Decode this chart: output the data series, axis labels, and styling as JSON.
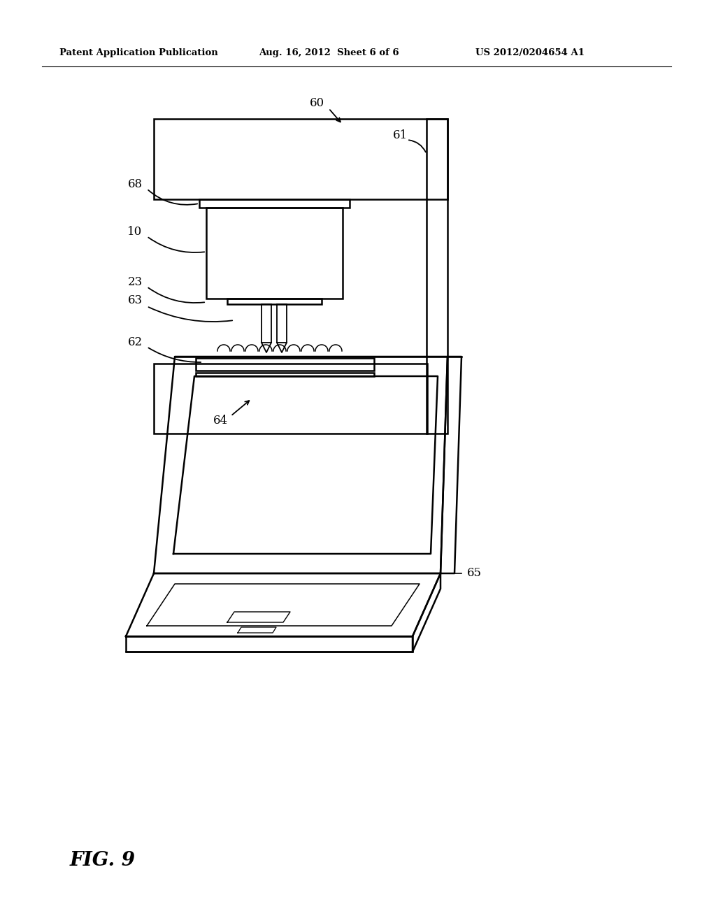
{
  "bg_color": "#ffffff",
  "line_color": "#000000",
  "header_left": "Patent Application Publication",
  "header_mid": "Aug. 16, 2012  Sheet 6 of 6",
  "header_right": "US 2012/0204654 A1",
  "fig_label": "FIG. 9"
}
